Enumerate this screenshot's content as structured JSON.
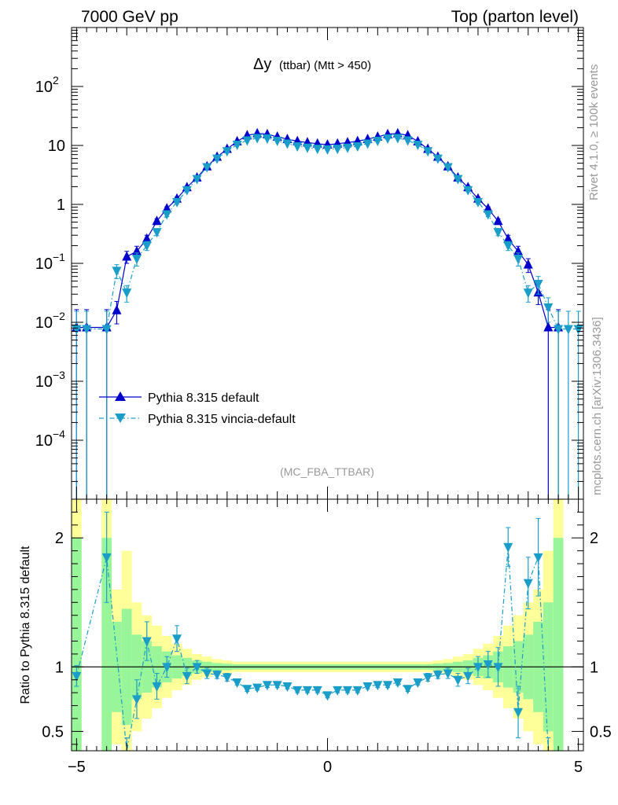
{
  "header": {
    "left": "7000 GeV pp",
    "right": "Top (parton level)"
  },
  "side": {
    "rivet": "Rivet 4.1.0, ≥ 100k events",
    "mcplots": "mcplots.cern.ch [arXiv:1306.3436]"
  },
  "chart_data": {
    "type": "line",
    "title": "Δy (ttbar) (Mtt > 450)",
    "title_main": "Δy",
    "title_sub": "(ttbar) (Mtt > 450)",
    "analysis": "(MC_FBA_TTBAR)",
    "xlabel": "",
    "ylabel_ratio": "Ratio to Pythia 8.315 default",
    "xlim": [
      -5.1,
      5.1
    ],
    "ylim_main_log10": [
      -5,
      3
    ],
    "ylim_ratio": [
      0.35,
      2.3
    ],
    "x_ticks": [
      -5,
      0,
      5
    ],
    "x_tick_labels": [
      "−5",
      "0",
      "5"
    ],
    "y_ticks_main": [
      {
        "exp": -4,
        "label": "10",
        "sup": "−4"
      },
      {
        "exp": -3,
        "label": "10",
        "sup": "−3"
      },
      {
        "exp": -2,
        "label": "10",
        "sup": "−2"
      },
      {
        "exp": -1,
        "label": "10",
        "sup": "−1"
      },
      {
        "exp": 0,
        "label": "1",
        "sup": ""
      },
      {
        "exp": 1,
        "label": "10",
        "sup": ""
      },
      {
        "exp": 2,
        "label": "10",
        "sup": "2"
      }
    ],
    "y_ticks_ratio": [
      {
        "value": 0.5,
        "label": "0.5"
      },
      {
        "value": 1,
        "label": "1"
      },
      {
        "value": 2,
        "label": "2"
      }
    ],
    "legend": [
      {
        "name": "Pythia 8.315 default",
        "color": "#0000cc",
        "marker": "triangle-up",
        "style": "solid"
      },
      {
        "name": "Pythia 8.315 vincia-default",
        "color": "#1a9ec9",
        "marker": "triangle-down",
        "style": "dashdot"
      }
    ],
    "band_colors": {
      "inner": "#99f599",
      "outer": "#ffff99"
    },
    "x": [
      -5.0,
      -4.8,
      -4.4,
      -4.2,
      -4.0,
      -3.8,
      -3.6,
      -3.4,
      -3.2,
      -3.0,
      -2.8,
      -2.6,
      -2.4,
      -2.2,
      -2.0,
      -1.8,
      -1.6,
      -1.4,
      -1.2,
      -1.0,
      -0.8,
      -0.6,
      -0.4,
      -0.2,
      0.0,
      0.2,
      0.4,
      0.6,
      0.8,
      1.0,
      1.2,
      1.4,
      1.6,
      1.8,
      2.0,
      2.2,
      2.4,
      2.6,
      2.8,
      3.0,
      3.2,
      3.4,
      3.6,
      3.8,
      4.0,
      4.2,
      4.4,
      4.6,
      4.8,
      5.0
    ],
    "series": [
      {
        "name": "Pythia 8.315 default",
        "values": [
          0.0082,
          0.0082,
          0.0082,
          0.016,
          0.13,
          0.16,
          0.26,
          0.52,
          0.85,
          1.25,
          1.95,
          2.85,
          4.4,
          6.4,
          8.7,
          11.7,
          14.8,
          16.0,
          15.5,
          14.0,
          12.8,
          11.8,
          11.2,
          10.7,
          10.3,
          10.7,
          11.2,
          11.8,
          12.8,
          14.0,
          15.5,
          16.0,
          14.8,
          11.7,
          8.7,
          6.4,
          4.4,
          2.85,
          1.95,
          1.25,
          0.85,
          0.52,
          0.26,
          0.16,
          0.095,
          0.032,
          0.0082,
          0.0082,
          null,
          null
        ],
        "err_low": [
          0.0082,
          0.0082,
          0.0082,
          0.0066,
          0.03,
          0.035,
          0.04,
          0.05,
          0.06,
          0.08,
          0.1,
          0.12,
          0.15,
          0.2,
          0.25,
          0.3,
          0.35,
          0.35,
          0.35,
          0.3,
          0.3,
          0.3,
          0.3,
          0.3,
          0.3,
          0.3,
          0.3,
          0.3,
          0.3,
          0.3,
          0.35,
          0.35,
          0.35,
          0.3,
          0.25,
          0.2,
          0.15,
          0.12,
          0.1,
          0.08,
          0.06,
          0.05,
          0.04,
          0.035,
          0.025,
          0.012,
          0.0082,
          0.0082,
          null,
          null
        ]
      },
      {
        "name": "Pythia 8.315 vincia-default",
        "values": [
          0.0077,
          0.0077,
          0.0077,
          0.075,
          0.032,
          0.12,
          0.2,
          0.34,
          0.68,
          1.1,
          1.75,
          2.7,
          4.3,
          6.0,
          8.0,
          10.3,
          12.2,
          13.4,
          13.2,
          12.0,
          10.8,
          9.7,
          9.2,
          8.8,
          8.6,
          8.8,
          9.2,
          9.7,
          10.8,
          12.0,
          13.2,
          13.4,
          12.2,
          10.3,
          8.0,
          6.0,
          4.3,
          2.7,
          1.75,
          1.1,
          0.68,
          0.34,
          0.2,
          0.12,
          0.032,
          0.045,
          0.018,
          0.0077,
          0.0077,
          0.0077
        ],
        "err_low": [
          0.0077,
          0.0077,
          0.0077,
          0.02,
          0.01,
          0.03,
          0.035,
          0.045,
          0.06,
          0.08,
          0.1,
          0.12,
          0.15,
          0.2,
          0.25,
          0.3,
          0.3,
          0.3,
          0.3,
          0.3,
          0.3,
          0.3,
          0.3,
          0.3,
          0.3,
          0.3,
          0.3,
          0.3,
          0.3,
          0.3,
          0.3,
          0.3,
          0.3,
          0.3,
          0.25,
          0.2,
          0.15,
          0.12,
          0.1,
          0.08,
          0.06,
          0.045,
          0.035,
          0.03,
          0.01,
          0.015,
          0.008,
          0.0077,
          0.0077,
          0.0077
        ]
      }
    ],
    "ratio": {
      "x": [
        -5.0,
        -4.4,
        -4.0,
        -3.8,
        -3.6,
        -3.4,
        -3.2,
        -3.0,
        -2.8,
        -2.6,
        -2.4,
        -2.2,
        -2.0,
        -1.8,
        -1.6,
        -1.4,
        -1.2,
        -1.0,
        -0.8,
        -0.6,
        -0.4,
        -0.2,
        0.0,
        0.2,
        0.4,
        0.6,
        0.8,
        1.0,
        1.2,
        1.4,
        1.6,
        1.8,
        2.0,
        2.2,
        2.4,
        2.6,
        2.8,
        3.0,
        3.2,
        3.4,
        3.6,
        3.8,
        4.0,
        4.2,
        4.4
      ],
      "values": [
        0.93,
        1.85,
        0.25,
        0.75,
        1.2,
        0.85,
        1.0,
        1.22,
        0.93,
        1.0,
        0.95,
        0.94,
        0.92,
        0.88,
        0.83,
        0.84,
        0.86,
        0.86,
        0.85,
        0.82,
        0.82,
        0.82,
        0.78,
        0.82,
        0.82,
        0.82,
        0.85,
        0.86,
        0.86,
        0.88,
        0.83,
        0.88,
        0.92,
        0.94,
        0.95,
        0.9,
        0.93,
        1.0,
        1.02,
        1.0,
        1.93,
        0.65,
        1.65,
        1.85,
        0.25
      ],
      "err": [
        0.08,
        0.35,
        0.2,
        0.15,
        0.15,
        0.1,
        0.08,
        0.1,
        0.06,
        0.05,
        0.04,
        0.03,
        0.03,
        0.02,
        0.02,
        0.02,
        0.02,
        0.02,
        0.02,
        0.02,
        0.02,
        0.02,
        0.02,
        0.02,
        0.02,
        0.02,
        0.02,
        0.02,
        0.02,
        0.02,
        0.02,
        0.02,
        0.03,
        0.03,
        0.04,
        0.05,
        0.06,
        0.08,
        0.1,
        0.15,
        0.15,
        0.2,
        0.2,
        0.3,
        0.2
      ],
      "band_x_edges": [
        -5.1,
        -4.9,
        -4.7,
        -4.5,
        -4.3,
        -4.1,
        -3.9,
        -3.7,
        -3.5,
        -3.3,
        -3.1,
        -2.9,
        -2.7,
        -2.5,
        -2.3,
        -2.1,
        -1.9,
        1.9,
        2.1,
        2.3,
        2.5,
        2.7,
        2.9,
        3.1,
        3.3,
        3.5,
        3.7,
        3.9,
        4.1,
        4.3,
        4.5,
        4.7
      ],
      "band_inner": [
        1.0,
        0.0,
        0.0,
        1.0,
        0.35,
        0.45,
        0.25,
        0.2,
        0.16,
        0.12,
        0.09,
        0.07,
        0.05,
        0.04,
        0.03,
        0.025,
        0.02,
        0.025,
        0.03,
        0.04,
        0.05,
        0.07,
        0.09,
        0.12,
        0.16,
        0.2,
        0.25,
        0.35,
        0.5,
        1.0,
        1.0
      ],
      "band_outer": [
        1.5,
        0.0,
        0.0,
        1.5,
        0.6,
        0.9,
        0.5,
        0.4,
        0.32,
        0.24,
        0.18,
        0.14,
        0.1,
        0.08,
        0.06,
        0.05,
        0.04,
        0.05,
        0.06,
        0.08,
        0.1,
        0.14,
        0.18,
        0.24,
        0.32,
        0.4,
        0.5,
        0.6,
        0.9,
        1.5,
        1.5
      ]
    }
  }
}
